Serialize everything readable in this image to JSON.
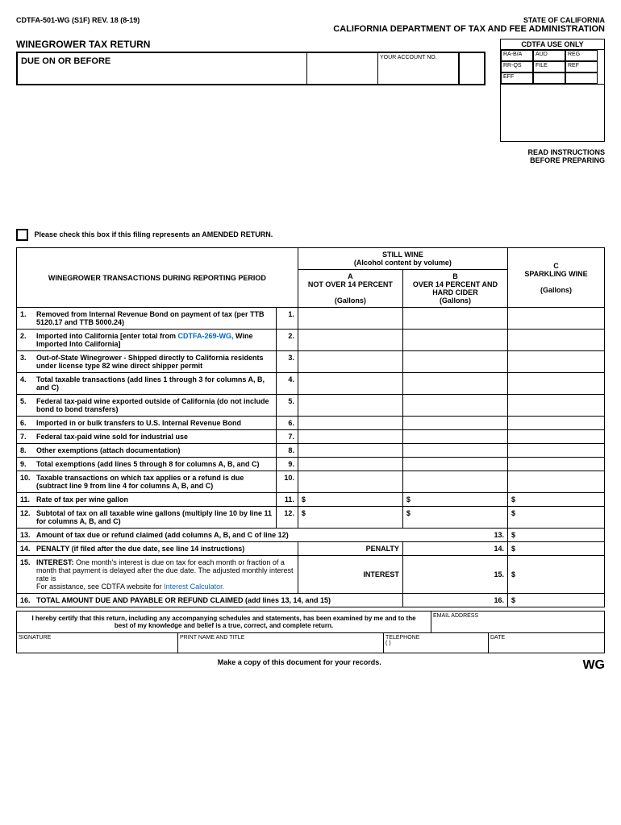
{
  "header": {
    "form_id": "CDTFA-501-WG (S1F) REV. 18 (8-19)",
    "state": "STATE OF CALIFORNIA",
    "dept": "CALIFORNIA DEPARTMENT OF TAX AND FEE ADMINISTRATION"
  },
  "title": "WINEGROWER TAX RETURN",
  "due_label": "DUE ON OR BEFORE",
  "acct_label": "YOUR ACCOUNT NO.",
  "useonly": {
    "hdr": "CDTFA USE ONLY",
    "cells": [
      "RA-B/A",
      "AUD",
      "REG",
      "RR-QS",
      "FILE",
      "REF",
      "EFF",
      "",
      ""
    ]
  },
  "read": "READ INSTRUCTIONS BEFORE PREPARING",
  "amend": "Please check this box if this filing represents an AMENDED RETURN.",
  "table_hdr": {
    "trans": "WINEGROWER TRANSACTIONS DURING REPORTING PERIOD",
    "still": "STILL WINE",
    "still_sub": "(Alcohol content by volume)",
    "colA": "A",
    "colA2": "NOT OVER 14 PERCENT",
    "colB": "B",
    "colB2": "OVER 14 PERCENT AND HARD CIDER",
    "colC": "C",
    "colC2": "SPARKLING WINE",
    "gal": "(Gallons)"
  },
  "rows": [
    {
      "n": "1.",
      "t": "Removed from Internal Revenue Bond on payment of tax (per TTB 5120.17 and TTB 5000.24)",
      "rn": "1."
    },
    {
      "n": "2.",
      "t": "Imported into California [enter total from ",
      "link": "CDTFA-269-WG,",
      "t2": " Wine Imported Into California]",
      "rn": "2."
    },
    {
      "n": "3.",
      "t": "Out-of-State Winegrower - Shipped directly to California residents under license type 82 wine direct shipper permit",
      "rn": "3."
    },
    {
      "n": "4.",
      "t": "Total taxable transactions (add lines 1 through 3 for columns A, B, and C)",
      "rn": "4."
    },
    {
      "n": "5.",
      "t": "Federal tax-paid wine exported outside of California (do not include bond to bond transfers)",
      "rn": "5."
    },
    {
      "n": "6.",
      "t": "Imported in or bulk transfers to U.S. Internal Revenue Bond",
      "rn": "6."
    },
    {
      "n": "7.",
      "t": "Federal tax-paid wine sold for industrial use",
      "rn": "7."
    },
    {
      "n": "8.",
      "t": "Other exemptions (attach documentation)",
      "rn": "8."
    },
    {
      "n": "9.",
      "t": "Total exemptions (add lines 5 through 8 for columns A, B, and C)",
      "rn": "9."
    },
    {
      "n": "10.",
      "t": "Taxable transactions on which tax applies or a refund is due (subtract line 9 from line 4 for columns A, B, and C)",
      "rn": "10."
    },
    {
      "n": "11.",
      "t": "Rate of tax per wine gallon",
      "rn": "11.",
      "d": true
    },
    {
      "n": "12.",
      "t": "Subtotal of tax on all taxable wine gallons (multiply line 10 by line 11 for columns A, B, and C)",
      "rn": "12.",
      "d": true
    }
  ],
  "row13": {
    "n": "13.",
    "t": "Amount of tax due or refund claimed (add columns A, B, and C of line 12)",
    "rn": "13."
  },
  "row14": {
    "n": "14.",
    "t": "PENALTY (if filed after the due date, see line 14 instructions)",
    "lbl": "PENALTY",
    "rn": "14."
  },
  "row15": {
    "n": "15.",
    "t1": "INTEREST:",
    "t2": " One month's interest is due on tax for each month or fraction of a month that payment is delayed after the due date. The adjusted monthly interest rate is",
    "t3": "For assistance, see CDTFA website for ",
    "link": "Interest Calculator.",
    "lbl": "INTEREST",
    "rn": "15."
  },
  "row16": {
    "n": "16.",
    "t": "TOTAL AMOUNT DUE AND PAYABLE OR REFUND CLAIMED  (add lines 13, 14, and 15)",
    "rn": "16."
  },
  "cert": "I hereby certify that this return, including any accompanying schedules and statements, has been examined by me and to the best of my knowledge and belief is a true, correct, and complete return.",
  "sig_labels": {
    "email": "EMAIL ADDRESS",
    "sig": "SIGNATURE",
    "print": "PRINT NAME AND TITLE",
    "tel": "TELEPHONE",
    "tel_paren": "(          )",
    "date": "DATE"
  },
  "footer": "Make a copy of this document for your records.",
  "wg": "WG",
  "dollar": "$"
}
